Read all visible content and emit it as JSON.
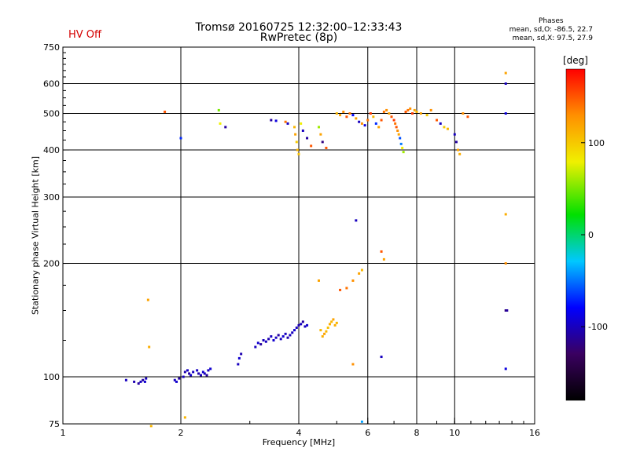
{
  "header": {
    "hv_status": "HV Off",
    "title": "Tromsø 20160725 12:32:00–12:33:43",
    "subtitle": "RwPretec (8p)"
  },
  "stats": {
    "title": "Phases",
    "line1": "mean, sd,O: -86.5, 22.7",
    "line2": "mean, sd,X:  97.5, 27.9"
  },
  "colorbar": {
    "unit": "[deg]",
    "ticks": [
      {
        "value": 100,
        "label": "100"
      },
      {
        "value": 0,
        "label": "0"
      },
      {
        "value": -100,
        "label": "-100"
      }
    ],
    "range": [
      -180,
      180
    ]
  },
  "chart_data": {
    "type": "scatter",
    "title": "Tromsø 20160725 12:32:00–12:33:43",
    "subtitle": "RwPretec (8p)",
    "xlabel": "Frequency [MHz]",
    "ylabel": "Stationary phase Virtual Height [km]",
    "xscale": "log",
    "yscale": "log",
    "xlim": [
      1,
      16
    ],
    "ylim": [
      75,
      750
    ],
    "xticks": [
      {
        "value": 1,
        "label": "1"
      },
      {
        "value": 2,
        "label": "2"
      },
      {
        "value": 4,
        "label": "4"
      },
      {
        "value": 6,
        "label": "6"
      },
      {
        "value": 8,
        "label": "8"
      },
      {
        "value": 10,
        "label": "10"
      },
      {
        "value": 16,
        "label": "16"
      }
    ],
    "yticks": [
      {
        "value": 75,
        "label": "75"
      },
      {
        "value": 100,
        "label": "100"
      },
      {
        "value": 200,
        "label": "200"
      },
      {
        "value": 300,
        "label": "300"
      },
      {
        "value": 400,
        "label": "400"
      },
      {
        "value": 500,
        "label": "500"
      },
      {
        "value": 600,
        "label": "600"
      },
      {
        "value": 750,
        "label": "750"
      }
    ],
    "gridlines_x": [
      2,
      4,
      6,
      8,
      10
    ],
    "gridlines_y": [
      100,
      200,
      300,
      400,
      500,
      600
    ],
    "color_scale": "phase [deg], -180 to 180",
    "points": [
      [
        1.45,
        98,
        -100
      ],
      [
        1.52,
        97,
        -105
      ],
      [
        1.56,
        96,
        -110
      ],
      [
        1.58,
        97,
        -100
      ],
      [
        1.6,
        98,
        -108
      ],
      [
        1.62,
        97,
        -95
      ],
      [
        1.63,
        99,
        -100
      ],
      [
        1.65,
        160,
        120
      ],
      [
        1.66,
        120,
        115
      ],
      [
        1.68,
        74,
        110
      ],
      [
        1.82,
        505,
        150
      ],
      [
        1.93,
        98,
        -100
      ],
      [
        1.95,
        97,
        -95
      ],
      [
        1.98,
        99,
        -110
      ],
      [
        2.0,
        430,
        -70
      ],
      [
        2.03,
        100,
        -100
      ],
      [
        2.05,
        103,
        -105
      ],
      [
        2.08,
        104,
        -100
      ],
      [
        2.1,
        102,
        -110
      ],
      [
        2.12,
        101,
        -95
      ],
      [
        2.15,
        103,
        -100
      ],
      [
        2.2,
        104,
        -100
      ],
      [
        2.22,
        102,
        -105
      ],
      [
        2.25,
        101,
        -100
      ],
      [
        2.28,
        103,
        -95
      ],
      [
        2.3,
        102,
        -100
      ],
      [
        2.33,
        101,
        -110
      ],
      [
        2.35,
        104,
        -100
      ],
      [
        2.38,
        105,
        -95
      ],
      [
        2.05,
        78,
        110
      ],
      [
        2.5,
        510,
        50
      ],
      [
        2.52,
        470,
        80
      ],
      [
        2.6,
        460,
        -110
      ],
      [
        2.8,
        108,
        -100
      ],
      [
        2.82,
        112,
        -95
      ],
      [
        2.85,
        115,
        -105
      ],
      [
        3.1,
        120,
        -100
      ],
      [
        3.15,
        123,
        -95
      ],
      [
        3.2,
        122,
        -110
      ],
      [
        3.25,
        125,
        -100
      ],
      [
        3.3,
        124,
        -100
      ],
      [
        3.35,
        126,
        -105
      ],
      [
        3.4,
        128,
        -100
      ],
      [
        3.45,
        125,
        -95
      ],
      [
        3.5,
        127,
        -100
      ],
      [
        3.55,
        129,
        -110
      ],
      [
        3.6,
        126,
        -100
      ],
      [
        3.65,
        128,
        -95
      ],
      [
        3.7,
        130,
        -100
      ],
      [
        3.75,
        127,
        -105
      ],
      [
        3.8,
        129,
        -100
      ],
      [
        3.85,
        131,
        -100
      ],
      [
        3.9,
        133,
        -95
      ],
      [
        3.95,
        135,
        -100
      ],
      [
        4.0,
        137,
        -105
      ],
      [
        4.05,
        138,
        -100
      ],
      [
        4.1,
        140,
        -110
      ],
      [
        4.15,
        136,
        -100
      ],
      [
        4.2,
        137,
        -95
      ],
      [
        3.4,
        480,
        -110
      ],
      [
        3.5,
        478,
        -90
      ],
      [
        3.7,
        475,
        140
      ],
      [
        3.75,
        470,
        -100
      ],
      [
        3.9,
        460,
        110
      ],
      [
        3.92,
        440,
        120
      ],
      [
        3.95,
        420,
        100
      ],
      [
        3.97,
        400,
        110
      ],
      [
        4.0,
        390,
        105
      ],
      [
        4.05,
        470,
        80
      ],
      [
        4.1,
        450,
        -100
      ],
      [
        4.2,
        430,
        -110
      ],
      [
        4.3,
        410,
        150
      ],
      [
        4.5,
        460,
        60
      ],
      [
        4.55,
        440,
        120
      ],
      [
        4.6,
        420,
        -120
      ],
      [
        4.7,
        405,
        150
      ],
      [
        4.55,
        133,
        110
      ],
      [
        4.6,
        128,
        115
      ],
      [
        4.65,
        130,
        120
      ],
      [
        4.7,
        132,
        110
      ],
      [
        4.75,
        135,
        105
      ],
      [
        4.8,
        138,
        115
      ],
      [
        4.85,
        140,
        110
      ],
      [
        4.9,
        142,
        120
      ],
      [
        4.95,
        137,
        115
      ],
      [
        5.0,
        139,
        110
      ],
      [
        4.5,
        180,
        120
      ],
      [
        5.1,
        170,
        150
      ],
      [
        5.3,
        172,
        140
      ],
      [
        5.5,
        180,
        130
      ],
      [
        5.7,
        188,
        120
      ],
      [
        5.8,
        192,
        110
      ],
      [
        5.6,
        260,
        -100
      ],
      [
        5.0,
        500,
        110
      ],
      [
        5.1,
        495,
        120
      ],
      [
        5.2,
        505,
        130
      ],
      [
        5.3,
        490,
        150
      ],
      [
        5.4,
        500,
        140
      ],
      [
        5.5,
        495,
        -80
      ],
      [
        5.6,
        485,
        120
      ],
      [
        5.7,
        475,
        -100
      ],
      [
        5.8,
        470,
        130
      ],
      [
        5.9,
        465,
        -90
      ],
      [
        6.0,
        480,
        140
      ],
      [
        6.1,
        500,
        160
      ],
      [
        6.2,
        490,
        110
      ],
      [
        6.3,
        470,
        -70
      ],
      [
        6.4,
        460,
        120
      ],
      [
        6.5,
        480,
        150
      ],
      [
        6.6,
        505,
        140
      ],
      [
        6.7,
        510,
        130
      ],
      [
        6.8,
        500,
        120
      ],
      [
        6.9,
        490,
        150
      ],
      [
        7.0,
        480,
        160
      ],
      [
        7.05,
        470,
        140
      ],
      [
        7.1,
        460,
        150
      ],
      [
        7.15,
        450,
        130
      ],
      [
        7.2,
        440,
        120
      ],
      [
        7.25,
        430,
        -60
      ],
      [
        7.3,
        415,
        -50
      ],
      [
        7.35,
        405,
        80
      ],
      [
        7.4,
        395,
        60
      ],
      [
        7.5,
        505,
        150
      ],
      [
        7.6,
        510,
        140
      ],
      [
        7.7,
        515,
        130
      ],
      [
        7.8,
        500,
        160
      ],
      [
        7.9,
        510,
        120
      ],
      [
        8.0,
        505,
        110
      ],
      [
        8.2,
        500,
        120
      ],
      [
        8.5,
        495,
        100
      ],
      [
        8.7,
        510,
        130
      ],
      [
        9.0,
        480,
        150
      ],
      [
        9.2,
        470,
        -100
      ],
      [
        9.4,
        460,
        100
      ],
      [
        9.6,
        455,
        110
      ],
      [
        10.0,
        440,
        -100
      ],
      [
        10.1,
        420,
        -110
      ],
      [
        10.2,
        400,
        120
      ],
      [
        10.3,
        390,
        115
      ],
      [
        10.5,
        500,
        130
      ],
      [
        10.8,
        490,
        150
      ],
      [
        6.5,
        215,
        150
      ],
      [
        6.6,
        205,
        120
      ],
      [
        5.5,
        108,
        130
      ],
      [
        6.5,
        113,
        -100
      ],
      [
        5.8,
        76,
        -40
      ],
      [
        13.5,
        640,
        120
      ],
      [
        13.5,
        600,
        -100
      ],
      [
        13.5,
        500,
        -90
      ],
      [
        13.5,
        270,
        115
      ],
      [
        13.5,
        200,
        130
      ],
      [
        13.5,
        150,
        -120
      ],
      [
        13.6,
        150,
        -110
      ],
      [
        13.5,
        105,
        -90
      ]
    ]
  }
}
